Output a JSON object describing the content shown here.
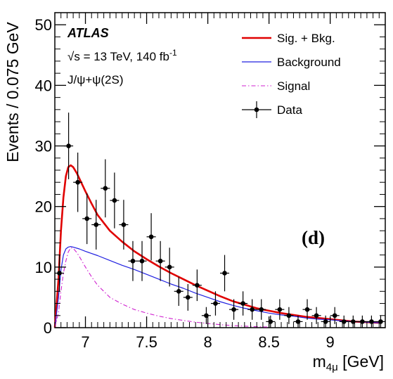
{
  "chart_data": {
    "type": "line",
    "atlas": "ATLAS",
    "energy_sqrt": "√s",
    "energy_rest": " = 13 TeV, 140 fb",
    "lumi_exp": "-1",
    "channel": "J/ψ+ψ(2S)",
    "panel_label": "(d)",
    "ylabel": "Events / 0.075 GeV",
    "xlabel_main": "m",
    "xlabel_sub": "4μ",
    "xlabel_unit": " [GeV]",
    "xlim": [
      6.75,
      9.45
    ],
    "ylim": [
      0,
      52
    ],
    "xticks": [
      7,
      7.5,
      8,
      8.5,
      9
    ],
    "xtick_labels": [
      "7",
      "7.5",
      "8",
      "8.5",
      "9"
    ],
    "yticks": [
      0,
      10,
      20,
      30,
      40,
      50
    ],
    "ytick_labels": [
      "0",
      "10",
      "20",
      "30",
      "40",
      "50"
    ],
    "legend_position": "top-right",
    "legend": [
      {
        "key": "sigbkg",
        "label": "Sig. + Bkg."
      },
      {
        "key": "background",
        "label": "Background"
      },
      {
        "key": "signal",
        "label": "Signal"
      },
      {
        "key": "data",
        "label": "Data"
      }
    ],
    "colors": {
      "sigbkg": "#e00000",
      "background": "#2020e0",
      "signal": "#d020d0",
      "data": "#000000"
    },
    "series": [
      {
        "key": "sigbkg",
        "x": [
          6.75,
          6.78,
          6.8,
          6.82,
          6.84,
          6.86,
          6.88,
          6.9,
          6.93,
          6.96,
          7.0,
          7.05,
          7.1,
          7.2,
          7.3,
          7.4,
          7.5,
          7.6,
          7.7,
          7.8,
          7.9,
          8.0,
          8.1,
          8.2,
          8.3,
          8.4,
          8.5,
          8.6,
          8.7,
          8.8,
          8.9,
          9.0,
          9.1,
          9.2,
          9.3,
          9.4
        ],
        "y": [
          0,
          8,
          16,
          21.5,
          25,
          26.5,
          26.8,
          26.5,
          25.5,
          24.2,
          22.5,
          20.5,
          18.6,
          16.0,
          14.2,
          12.6,
          11.3,
          10.1,
          9.0,
          8.0,
          7.0,
          6.1,
          5.2,
          4.4,
          3.8,
          3.2,
          2.8,
          2.4,
          2.1,
          1.8,
          1.6,
          1.4,
          1.2,
          1.0,
          0.9,
          0.8
        ]
      },
      {
        "key": "background",
        "x": [
          6.75,
          6.78,
          6.8,
          6.82,
          6.84,
          6.86,
          6.88,
          6.9,
          6.95,
          7.0,
          7.1,
          7.2,
          7.3,
          7.4,
          7.5,
          7.6,
          7.7,
          7.8,
          7.9,
          8.0,
          8.1,
          8.2,
          8.3,
          8.4,
          8.5,
          8.6,
          8.7,
          8.8,
          8.9,
          9.0,
          9.1,
          9.2,
          9.3,
          9.4
        ],
        "y": [
          0,
          5,
          9.5,
          12,
          13,
          13.3,
          13.4,
          13.3,
          13.0,
          12.6,
          11.9,
          11.1,
          10.3,
          9.6,
          8.8,
          8.0,
          7.2,
          6.5,
          5.7,
          5.0,
          4.3,
          3.7,
          3.2,
          2.8,
          2.4,
          2.1,
          1.9,
          1.6,
          1.4,
          1.3,
          1.1,
          1.0,
          0.9,
          0.8
        ]
      },
      {
        "key": "signal",
        "x": [
          6.75,
          6.78,
          6.8,
          6.82,
          6.84,
          6.86,
          6.88,
          6.9,
          6.93,
          6.96,
          7.0,
          7.05,
          7.1,
          7.2,
          7.3,
          7.4,
          7.5,
          7.6,
          7.7,
          7.8,
          7.9,
          8.0,
          8.1,
          8.2,
          8.3,
          8.4,
          8.5
        ],
        "y": [
          0,
          2.5,
          6,
          9,
          11,
          12.5,
          13.2,
          13.1,
          12.4,
          11.4,
          10.0,
          8.4,
          7.0,
          5.0,
          3.9,
          3.0,
          2.4,
          1.9,
          1.5,
          1.2,
          0.9,
          0.7,
          0.5,
          0.35,
          0.25,
          0.15,
          0.1
        ]
      }
    ],
    "data_points": {
      "key": "data",
      "x": [
        6.7875,
        6.8625,
        6.9375,
        7.0125,
        7.0875,
        7.1625,
        7.2375,
        7.3125,
        7.3875,
        7.4625,
        7.5375,
        7.6125,
        7.6875,
        7.7625,
        7.8375,
        7.9125,
        7.9875,
        8.0625,
        8.1375,
        8.2125,
        8.2875,
        8.3625,
        8.4375,
        8.5125,
        8.5875,
        8.6625,
        8.7375,
        8.8125,
        8.8875,
        8.9625,
        9.0375,
        9.1125,
        9.1875,
        9.2625,
        9.3375,
        9.4125
      ],
      "y": [
        9,
        30,
        24,
        18,
        17,
        23,
        21,
        17,
        11,
        11,
        15,
        11,
        10,
        6,
        5,
        7,
        2,
        4,
        9,
        3,
        4,
        3,
        3,
        1,
        3,
        2,
        1,
        3,
        2,
        1,
        2,
        1,
        1,
        1,
        1,
        1
      ],
      "yerr": [
        3,
        5.5,
        4.9,
        4.2,
        4.1,
        4.8,
        4.6,
        4.1,
        3.3,
        3.3,
        3.9,
        3.3,
        3.2,
        2.4,
        2.2,
        2.6,
        1.4,
        2,
        3,
        1.7,
        2,
        1.7,
        1.7,
        1,
        1.7,
        1.4,
        1,
        1.7,
        1.4,
        1,
        1.4,
        1,
        1,
        1,
        1,
        1
      ]
    }
  }
}
